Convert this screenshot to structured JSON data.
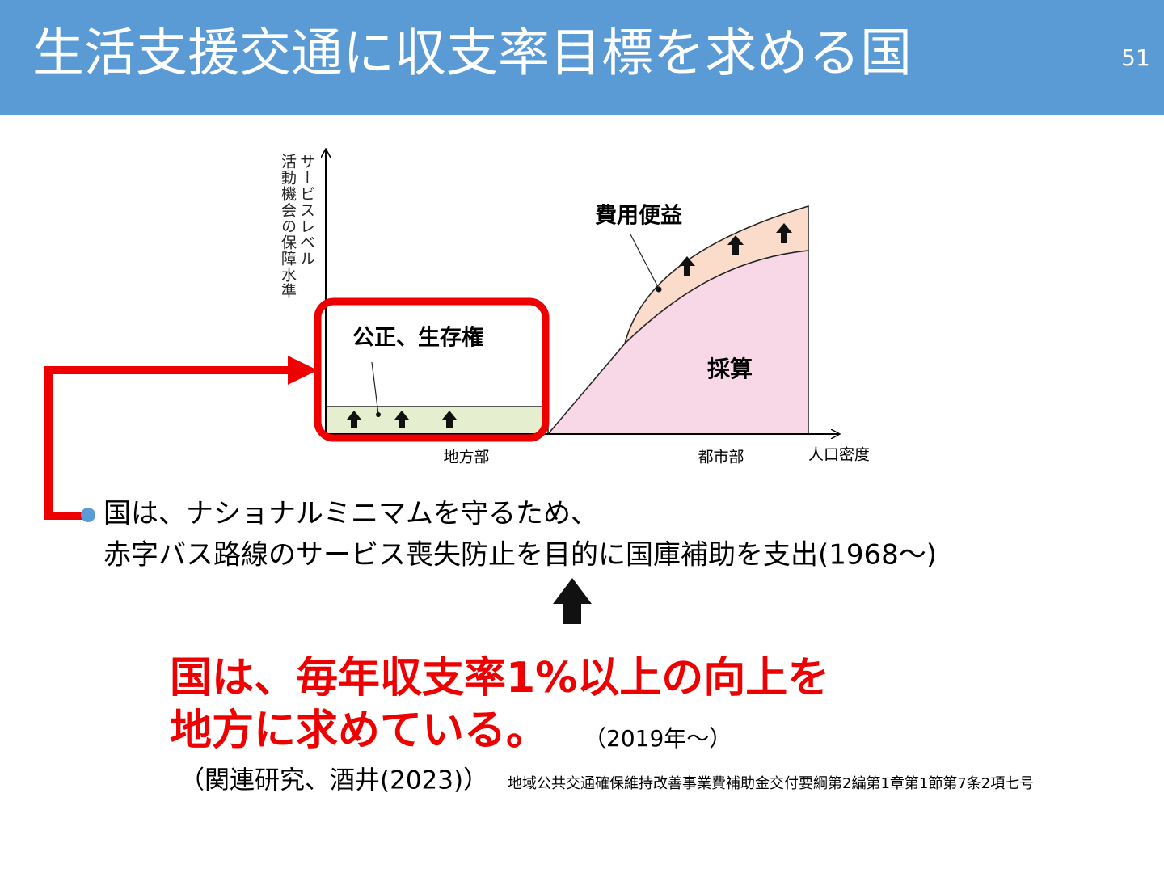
{
  "header": {
    "title": "生活支援交通に収支率目標を求める国",
    "page_number": "51"
  },
  "diagram": {
    "y_axis_label": [
      "サービスレベル",
      "活動機会の保障水準"
    ],
    "x_axis_label": "人口密度",
    "rural_label": "地方部",
    "urban_label": "都市部",
    "equity_label": "公正、生存権",
    "cost_benefit_label": "費用便益",
    "profitability_label": "採算"
  },
  "body": {
    "bullet_lines": [
      "国は、ナショナルミニマムを守るため、",
      "赤字バス路線のサービス喪失防止を目的に国庫補助を支出(1968～)"
    ]
  },
  "emphasis": {
    "lines": [
      "国は、毎年収支率1%以上の向上を",
      "地方に求めている。"
    ],
    "note": "（2019年～）"
  },
  "references": {
    "related": "（関連研究、酒井(2023)）",
    "source": "地域公共交通確保維持改善事業費補助金交付要綱第2編第1章第1節第7条2項七号"
  }
}
